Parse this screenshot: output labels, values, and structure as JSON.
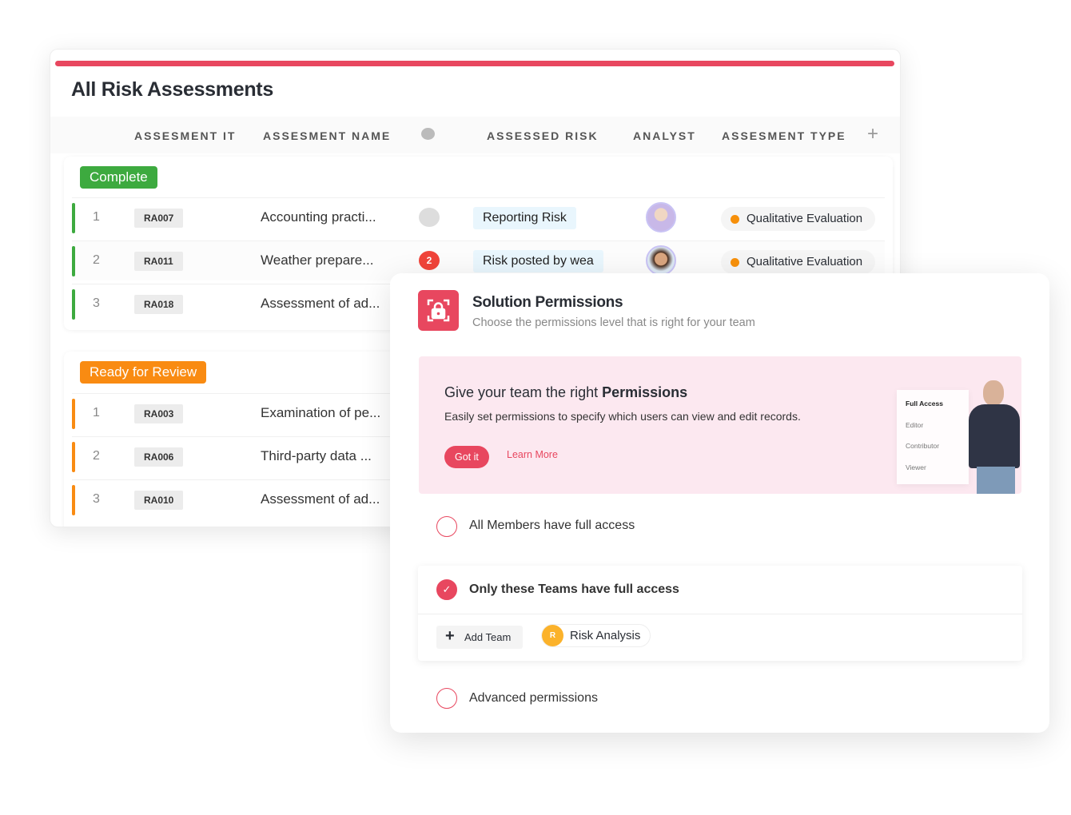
{
  "table": {
    "title": "All Risk Assessments",
    "columns": [
      "ASSESMENT IT",
      "ASSESMENT NAME",
      "ASSESSED RISK",
      "ANALYST",
      "ASSESMENT TYPE"
    ],
    "groups": [
      {
        "label": "Complete",
        "color": "#3daa3f",
        "rows": [
          {
            "num": "1",
            "id": "RA007",
            "name": "Accounting practi...",
            "comments": "",
            "risk": "Reporting Risk",
            "type": "Qualitative Evaluation"
          },
          {
            "num": "2",
            "id": "RA011",
            "name": "Weather prepare...",
            "comments": "2",
            "risk": "Risk posted by wea",
            "type": "Qualitative Evaluation"
          },
          {
            "num": "3",
            "id": "RA018",
            "name": "Assessment of ad...",
            "comments": "",
            "risk": "",
            "type": ""
          }
        ]
      },
      {
        "label": "Ready for Review",
        "color": "#f98b12",
        "rows": [
          {
            "num": "1",
            "id": "RA003",
            "name": "Examination of pe..."
          },
          {
            "num": "2",
            "id": "RA006",
            "name": "Third-party data ..."
          },
          {
            "num": "3",
            "id": "RA010",
            "name": "Assessment of ad..."
          }
        ]
      }
    ]
  },
  "permissions": {
    "title": "Solution Permissions",
    "subtitle": "Choose the permissions level that is right for your team",
    "promo": {
      "heading_prefix": "Give your team the right ",
      "heading_bold": "Permissions",
      "body": "Easily set permissions to specify which users can view and edit records.",
      "got_it": "Got it",
      "learn_more": "Learn More",
      "menu": [
        "Full Access",
        "Editor",
        "Contributor",
        "Viewer"
      ]
    },
    "options": [
      {
        "label": "All Members have full access",
        "selected": false
      },
      {
        "label": "Only these Teams have full access",
        "selected": true
      },
      {
        "label": "Advanced permissions",
        "selected": false
      }
    ],
    "add_team": "Add Team",
    "team": {
      "initial": "R",
      "name": "Risk Analysis"
    }
  },
  "colors": {
    "accent": "#e8475f",
    "complete": "#3daa3f",
    "review": "#f98b12"
  }
}
